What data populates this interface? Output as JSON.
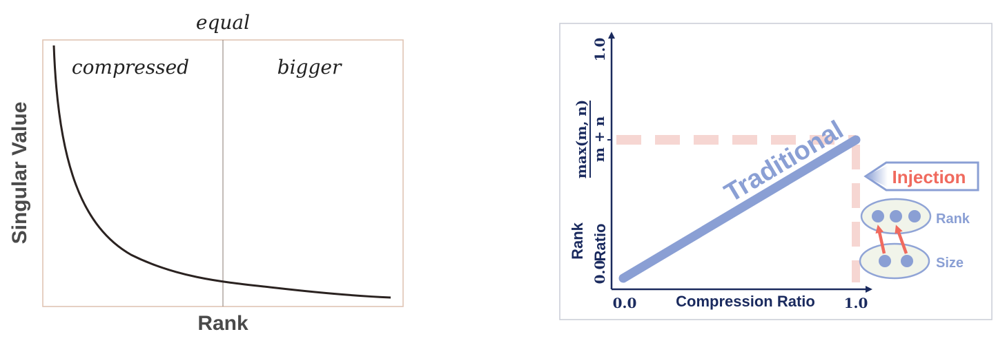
{
  "left_panel": {
    "top_label": "equal",
    "region_left": "compressed",
    "region_right": "bigger",
    "y_axis_label": "Singular Value",
    "x_axis_label": "Rank"
  },
  "right_panel": {
    "y_axis_label_line1": "Rank",
    "y_axis_label_line2": "Ratio",
    "y_tick_bottom": "0.0",
    "y_tick_top": "1.0",
    "y_fraction_numerator": "max(m, n)",
    "y_fraction_denominator": "m + n",
    "x_axis_label": "Compression Ratio",
    "x_tick_left": "0.0",
    "x_tick_right": "1.0",
    "line_label": "Traditional",
    "injection_label": "Injection",
    "rank_label": "Rank",
    "size_label": "Size"
  },
  "colors": {
    "left_border": "#e0c4b4",
    "curve": "#2a2220",
    "navy": "#1a2a5e",
    "line_blue": "#8a9fd4",
    "dash_pink": "#f6d6d2",
    "injection_red": "#f06a5e",
    "ellipse_fill": "#f1f4ea",
    "ellipse_stroke": "#90a4d6",
    "label_gray": "#4a4a4a"
  }
}
